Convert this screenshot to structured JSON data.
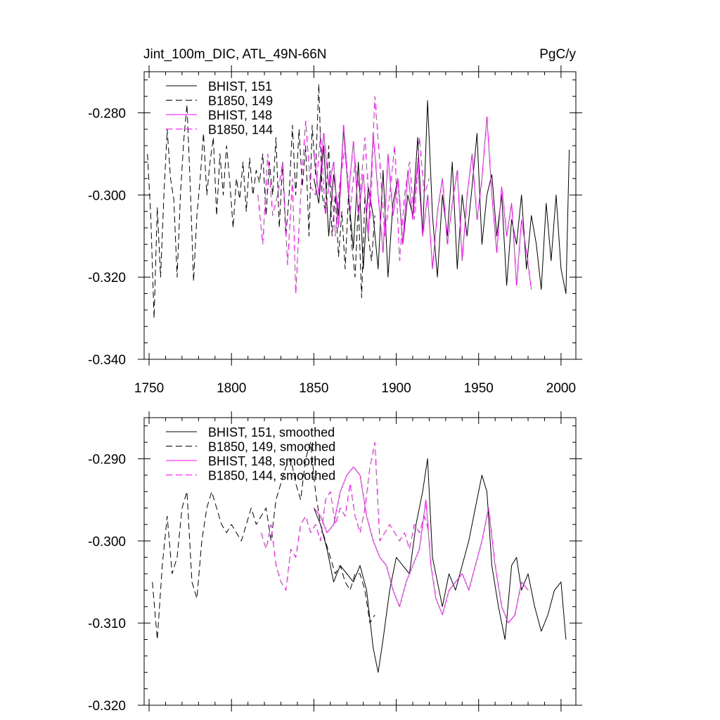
{
  "header": {
    "title": "Jint_100m_DIC, ATL_49N-66N",
    "units": "PgC/y"
  },
  "colors": {
    "black": "#000000",
    "magenta": "#ff00ff"
  },
  "chart_data": [
    {
      "type": "line",
      "xlim": [
        1747,
        2009
      ],
      "ylim": [
        -0.34,
        -0.27
      ],
      "xticks": [
        1750,
        1800,
        1850,
        1900,
        1950,
        2000
      ],
      "yticks": [
        -0.34,
        -0.32,
        -0.3,
        -0.28
      ],
      "ytick_labels": [
        "-0.340",
        "-0.320",
        "-0.300",
        "-0.280"
      ],
      "xtick_labels": [
        "1750",
        "1800",
        "1850",
        "1900",
        "1950",
        "2000"
      ],
      "legend": "top-left",
      "series": [
        {
          "name": "BHIST, 151",
          "color": "#000000",
          "dash": "solid",
          "x": [
            1850,
            1853,
            1856,
            1859,
            1862,
            1865,
            1868,
            1871,
            1874,
            1877,
            1880,
            1883,
            1886,
            1889,
            1892,
            1895,
            1898,
            1901,
            1904,
            1907,
            1910,
            1913,
            1916,
            1919,
            1922,
            1925,
            1928,
            1931,
            1934,
            1937,
            1940,
            1943,
            1946,
            1949,
            1952,
            1955,
            1958,
            1961,
            1964,
            1967,
            1970,
            1973,
            1976,
            1979,
            1982,
            1985,
            1988,
            1991,
            1994,
            1997,
            2000,
            2003,
            2005
          ],
          "y": [
            -0.296,
            -0.302,
            -0.288,
            -0.31,
            -0.295,
            -0.305,
            -0.284,
            -0.3,
            -0.313,
            -0.292,
            -0.318,
            -0.298,
            -0.305,
            -0.318,
            -0.294,
            -0.32,
            -0.302,
            -0.296,
            -0.312,
            -0.3,
            -0.305,
            -0.286,
            -0.31,
            -0.277,
            -0.305,
            -0.32,
            -0.3,
            -0.31,
            -0.292,
            -0.318,
            -0.3,
            -0.31,
            -0.298,
            -0.285,
            -0.312,
            -0.3,
            -0.295,
            -0.31,
            -0.3,
            -0.322,
            -0.306,
            -0.312,
            -0.3,
            -0.318,
            -0.305,
            -0.312,
            -0.323,
            -0.302,
            -0.316,
            -0.3,
            -0.318,
            -0.324,
            -0.289
          ]
        },
        {
          "name": "B1850, 149",
          "color": "#000000",
          "dash": "dashed",
          "x": [
            1749,
            1751,
            1753,
            1755,
            1757,
            1759,
            1761,
            1763,
            1765,
            1767,
            1769,
            1771,
            1773,
            1775,
            1777,
            1779,
            1781,
            1783,
            1785,
            1787,
            1789,
            1791,
            1793,
            1795,
            1797,
            1799,
            1801,
            1803,
            1805,
            1807,
            1809,
            1811,
            1813,
            1815,
            1817,
            1819,
            1821,
            1823,
            1825,
            1827,
            1829,
            1831,
            1833,
            1835,
            1837,
            1839,
            1841,
            1843,
            1845,
            1847,
            1849,
            1851,
            1853,
            1855,
            1857,
            1859,
            1861,
            1863,
            1865,
            1867,
            1869,
            1871,
            1873,
            1875,
            1877,
            1879,
            1881,
            1883,
            1885,
            1887
          ],
          "y": [
            -0.29,
            -0.305,
            -0.33,
            -0.303,
            -0.32,
            -0.3,
            -0.284,
            -0.296,
            -0.301,
            -0.32,
            -0.3,
            -0.287,
            -0.278,
            -0.298,
            -0.321,
            -0.305,
            -0.296,
            -0.285,
            -0.3,
            -0.292,
            -0.286,
            -0.305,
            -0.29,
            -0.3,
            -0.288,
            -0.297,
            -0.308,
            -0.296,
            -0.301,
            -0.292,
            -0.304,
            -0.291,
            -0.3,
            -0.294,
            -0.297,
            -0.29,
            -0.305,
            -0.292,
            -0.3,
            -0.286,
            -0.308,
            -0.292,
            -0.31,
            -0.3,
            -0.283,
            -0.3,
            -0.284,
            -0.298,
            -0.288,
            -0.31,
            -0.283,
            -0.295,
            -0.273,
            -0.3,
            -0.304,
            -0.288,
            -0.31,
            -0.3,
            -0.315,
            -0.304,
            -0.318,
            -0.3,
            -0.312,
            -0.32,
            -0.302,
            -0.325,
            -0.3,
            -0.31,
            -0.316,
            -0.305
          ]
        },
        {
          "name": "BHIST, 148",
          "color": "#ff00ff",
          "dash": "solid",
          "x": [
            1850,
            1853,
            1856,
            1859,
            1862,
            1865,
            1868,
            1871,
            1874,
            1877,
            1880,
            1883,
            1886,
            1889,
            1892,
            1895,
            1898,
            1901,
            1904,
            1907,
            1910,
            1913,
            1916,
            1919,
            1922,
            1925,
            1928,
            1931,
            1934,
            1937,
            1940,
            1943,
            1946,
            1949,
            1952,
            1955,
            1958,
            1961,
            1964,
            1967,
            1970,
            1973,
            1976,
            1979,
            1982
          ],
          "y": [
            -0.29,
            -0.3,
            -0.285,
            -0.298,
            -0.292,
            -0.308,
            -0.283,
            -0.3,
            -0.287,
            -0.305,
            -0.295,
            -0.31,
            -0.285,
            -0.3,
            -0.314,
            -0.29,
            -0.305,
            -0.296,
            -0.312,
            -0.294,
            -0.306,
            -0.292,
            -0.31,
            -0.3,
            -0.318,
            -0.304,
            -0.296,
            -0.312,
            -0.302,
            -0.294,
            -0.316,
            -0.3,
            -0.29,
            -0.306,
            -0.296,
            -0.281,
            -0.3,
            -0.314,
            -0.298,
            -0.31,
            -0.302,
            -0.322,
            -0.306,
            -0.314,
            -0.323
          ]
        },
        {
          "name": "B1850, 144",
          "color": "#ff00ff",
          "dash": "dashed",
          "x": [
            1816,
            1819,
            1822,
            1825,
            1828,
            1831,
            1834,
            1837,
            1839,
            1842,
            1845,
            1848,
            1851,
            1854,
            1857,
            1860,
            1863,
            1866,
            1869,
            1872,
            1875,
            1878,
            1881,
            1884,
            1887,
            1890,
            1893,
            1896,
            1899,
            1902,
            1905,
            1908,
            1911,
            1914,
            1917,
            1920
          ],
          "y": [
            -0.3,
            -0.312,
            -0.29,
            -0.305,
            -0.3,
            -0.292,
            -0.317,
            -0.296,
            -0.324,
            -0.3,
            -0.282,
            -0.298,
            -0.3,
            -0.285,
            -0.305,
            -0.294,
            -0.31,
            -0.296,
            -0.288,
            -0.304,
            -0.292,
            -0.3,
            -0.286,
            -0.306,
            -0.276,
            -0.292,
            -0.31,
            -0.3,
            -0.288,
            -0.316,
            -0.3,
            -0.292,
            -0.306,
            -0.286,
            -0.3,
            -0.296
          ]
        }
      ]
    },
    {
      "type": "line",
      "xlim": [
        1747,
        2009
      ],
      "ylim": [
        -0.32,
        -0.285
      ],
      "xticks": [
        1750,
        1800,
        1850,
        1900,
        1950,
        2000
      ],
      "yticks": [
        -0.32,
        -0.31,
        -0.3,
        -0.29
      ],
      "ytick_labels": [
        "-0.320",
        "-0.310",
        "-0.300",
        "-0.290"
      ],
      "legend": "top-left",
      "series": [
        {
          "name": "BHIST, 151, smoothed",
          "color": "#000000",
          "dash": "solid",
          "x": [
            1850,
            1854,
            1858,
            1862,
            1866,
            1870,
            1874,
            1878,
            1882,
            1886,
            1889,
            1892,
            1896,
            1900,
            1904,
            1908,
            1912,
            1916,
            1919,
            1922,
            1925,
            1928,
            1932,
            1936,
            1940,
            1944,
            1948,
            1952,
            1955,
            1958,
            1962,
            1966,
            1970,
            1973,
            1976,
            1980,
            1984,
            1988,
            1992,
            1996,
            2000,
            2003
          ],
          "y": [
            -0.296,
            -0.298,
            -0.301,
            -0.305,
            -0.303,
            -0.304,
            -0.305,
            -0.303,
            -0.306,
            -0.313,
            -0.316,
            -0.312,
            -0.306,
            -0.302,
            -0.303,
            -0.304,
            -0.298,
            -0.294,
            -0.29,
            -0.302,
            -0.305,
            -0.308,
            -0.304,
            -0.306,
            -0.303,
            -0.3,
            -0.296,
            -0.292,
            -0.294,
            -0.303,
            -0.308,
            -0.312,
            -0.303,
            -0.302,
            -0.306,
            -0.304,
            -0.308,
            -0.311,
            -0.309,
            -0.306,
            -0.305,
            -0.312
          ]
        },
        {
          "name": "B1850, 149, smoothed",
          "color": "#000000",
          "dash": "dashed",
          "x": [
            1752,
            1755,
            1758,
            1761,
            1764,
            1767,
            1770,
            1773,
            1776,
            1779,
            1782,
            1785,
            1788,
            1791,
            1794,
            1797,
            1800,
            1803,
            1806,
            1809,
            1812,
            1815,
            1818,
            1821,
            1824,
            1827,
            1830,
            1833,
            1836,
            1839,
            1842,
            1845,
            1848,
            1851,
            1854,
            1857,
            1860,
            1863,
            1866,
            1869,
            1872,
            1875,
            1878,
            1881,
            1884,
            1887
          ],
          "y": [
            -0.305,
            -0.312,
            -0.303,
            -0.297,
            -0.304,
            -0.302,
            -0.296,
            -0.294,
            -0.305,
            -0.307,
            -0.3,
            -0.296,
            -0.294,
            -0.296,
            -0.298,
            -0.299,
            -0.298,
            -0.299,
            -0.3,
            -0.298,
            -0.296,
            -0.298,
            -0.297,
            -0.296,
            -0.3,
            -0.295,
            -0.293,
            -0.291,
            -0.29,
            -0.293,
            -0.295,
            -0.29,
            -0.288,
            -0.294,
            -0.298,
            -0.3,
            -0.302,
            -0.304,
            -0.303,
            -0.305,
            -0.306,
            -0.304,
            -0.304,
            -0.306,
            -0.31,
            -0.309
          ]
        },
        {
          "name": "BHIST, 148, smoothed",
          "color": "#ff00ff",
          "dash": "solid",
          "x": [
            1850,
            1854,
            1858,
            1862,
            1866,
            1870,
            1874,
            1878,
            1882,
            1886,
            1890,
            1894,
            1898,
            1902,
            1906,
            1910,
            1914,
            1918,
            1921,
            1924,
            1928,
            1932,
            1936,
            1940,
            1944,
            1948,
            1952,
            1956,
            1960,
            1964,
            1968,
            1972,
            1976,
            1980
          ],
          "y": [
            -0.296,
            -0.297,
            -0.299,
            -0.298,
            -0.294,
            -0.292,
            -0.291,
            -0.292,
            -0.297,
            -0.3,
            -0.302,
            -0.303,
            -0.306,
            -0.308,
            -0.305,
            -0.303,
            -0.301,
            -0.295,
            -0.303,
            -0.307,
            -0.309,
            -0.306,
            -0.305,
            -0.304,
            -0.306,
            -0.303,
            -0.3,
            -0.296,
            -0.303,
            -0.308,
            -0.31,
            -0.309,
            -0.305,
            -0.306
          ]
        },
        {
          "name": "B1850, 144, smoothed",
          "color": "#ff00ff",
          "dash": "dashed",
          "x": [
            1818,
            1821,
            1824,
            1827,
            1830,
            1833,
            1836,
            1839,
            1842,
            1845,
            1848,
            1851,
            1854,
            1857,
            1860,
            1863,
            1866,
            1869,
            1872,
            1875,
            1878,
            1881,
            1884,
            1887,
            1890,
            1893,
            1896,
            1899,
            1902,
            1905,
            1908,
            1911,
            1914,
            1917,
            1920
          ],
          "y": [
            -0.299,
            -0.301,
            -0.298,
            -0.303,
            -0.305,
            -0.306,
            -0.301,
            -0.302,
            -0.298,
            -0.297,
            -0.299,
            -0.298,
            -0.3,
            -0.295,
            -0.294,
            -0.298,
            -0.296,
            -0.297,
            -0.293,
            -0.297,
            -0.299,
            -0.296,
            -0.291,
            -0.288,
            -0.3,
            -0.299,
            -0.298,
            -0.299,
            -0.3,
            -0.299,
            -0.301,
            -0.298,
            -0.299,
            -0.297,
            -0.299
          ]
        }
      ]
    }
  ]
}
